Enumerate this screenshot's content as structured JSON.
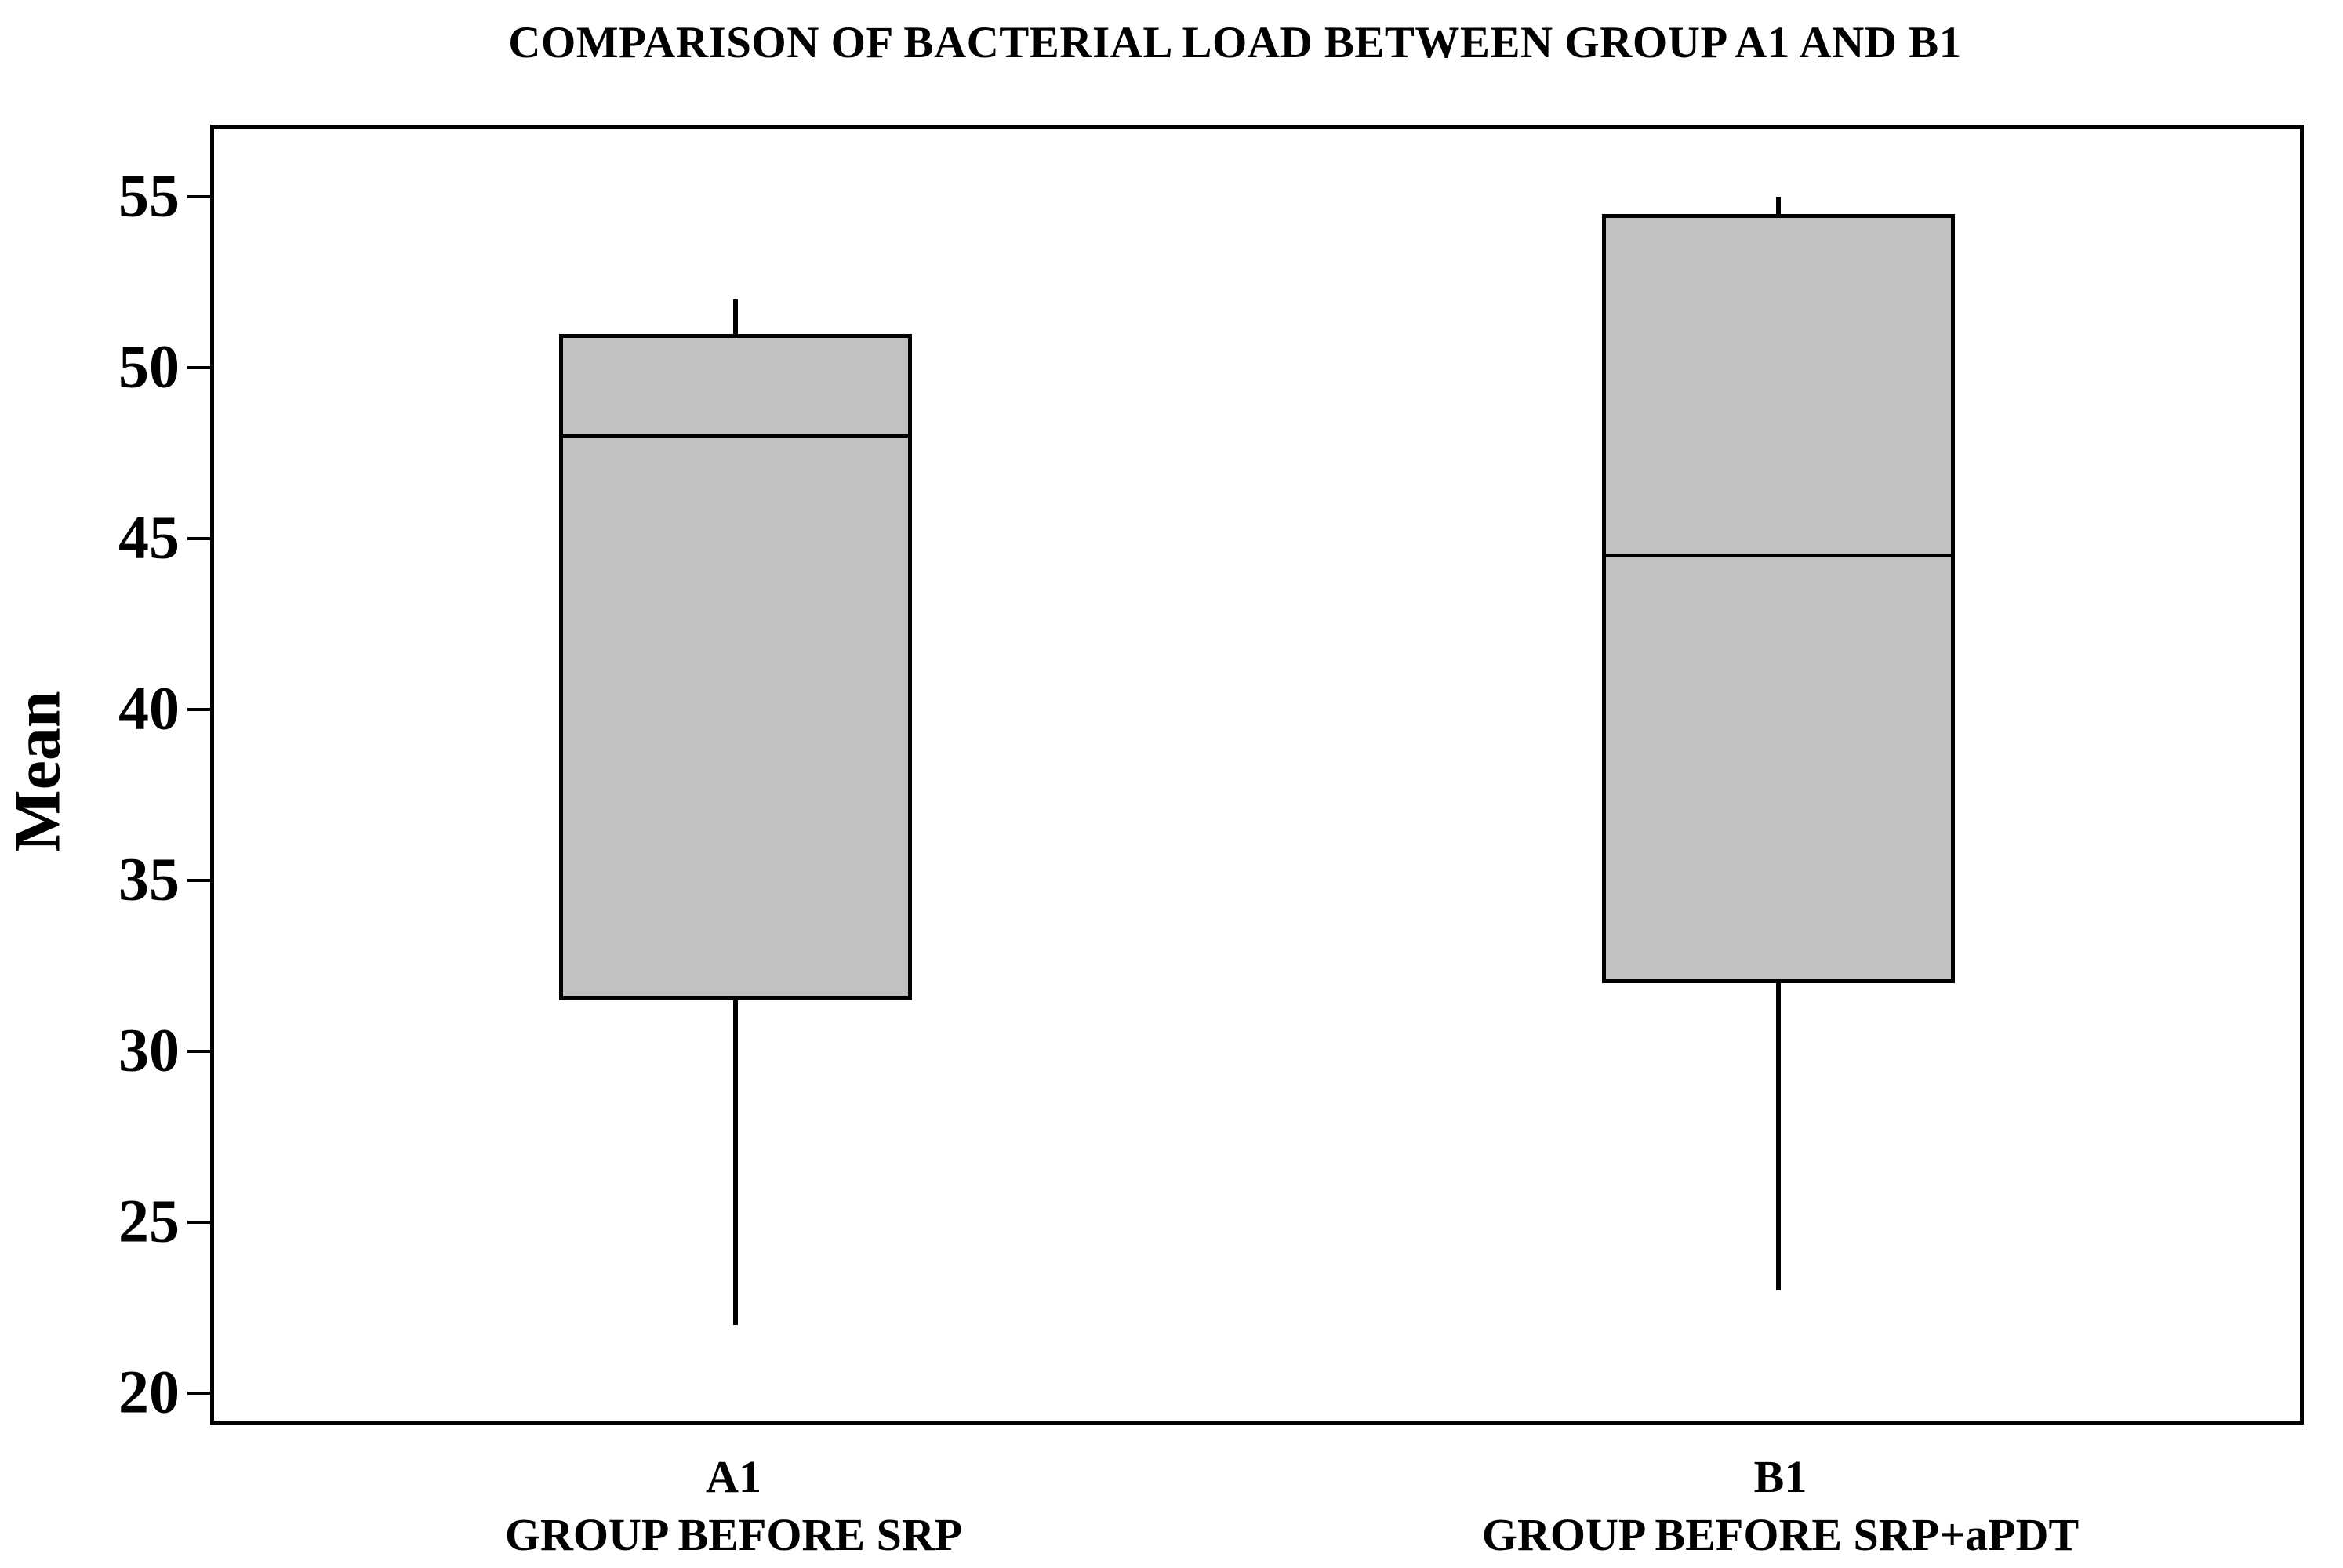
{
  "chart_data": {
    "type": "box",
    "title": "COMPARISON OF BACTERIAL LOAD BETWEEN GROUP A1 AND B1",
    "xlabel": "",
    "ylabel": "Mean",
    "y_axis": {
      "tick_values": [
        55,
        50,
        45,
        40,
        35,
        30,
        25,
        20
      ],
      "top_value": 57.0,
      "bottom_value": 19.2,
      "grid": false
    },
    "legend": null,
    "groups": [
      {
        "tick_label": "A1",
        "axis_label": "GROUP BEFORE SRP",
        "whisker_low": 22,
        "q1": 31.5,
        "median": 48,
        "q3": 51,
        "whisker_high": 52
      },
      {
        "tick_label": "B1",
        "axis_label": "GROUP BEFORE SRP+aPDT",
        "whisker_low": 23,
        "q1": 32,
        "median": 44.5,
        "q3": 54.5,
        "whisker_high": 55
      }
    ],
    "style": {
      "box_fill": "#c1c1c1",
      "line_color": "#000000",
      "background": "#ffffff"
    }
  }
}
